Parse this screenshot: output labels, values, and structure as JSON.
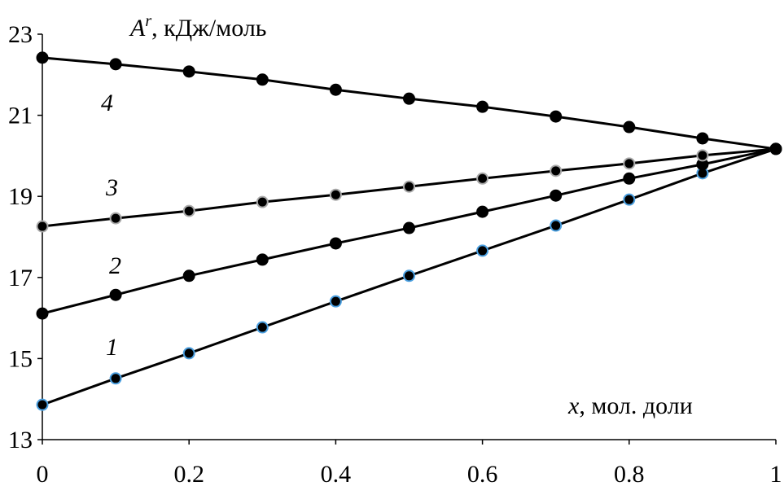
{
  "chart_data": {
    "type": "line",
    "title": "",
    "ylabel_main": "A",
    "ylabel_sup": "r",
    "ylabel_rest": ", кДж/моль",
    "xlabel_var": "x",
    "xlabel_rest": ", мол. доли",
    "xlim": [
      0,
      1
    ],
    "ylim": [
      13,
      23
    ],
    "xticks": [
      "0",
      "0.2",
      "0.4",
      "0.6",
      "0.8",
      "1"
    ],
    "yticks": [
      "13",
      "15",
      "17",
      "19",
      "21",
      "23"
    ],
    "grid": false,
    "x": [
      0,
      0.1,
      0.2,
      0.3,
      0.4,
      0.5,
      0.6,
      0.7,
      0.8,
      0.9,
      1.0
    ],
    "series": [
      {
        "label": "1",
        "marker_edge": "#4a9fe0",
        "values": [
          13.86,
          14.51,
          15.13,
          15.77,
          16.41,
          17.04,
          17.66,
          18.28,
          18.92,
          19.57,
          20.17
        ]
      },
      {
        "label": "2",
        "marker_edge": "#000000",
        "values": [
          16.11,
          16.57,
          17.04,
          17.44,
          17.84,
          18.22,
          18.62,
          19.02,
          19.44,
          19.79,
          20.17
        ]
      },
      {
        "label": "3",
        "marker_edge": "#aaaaaa",
        "values": [
          18.26,
          18.46,
          18.64,
          18.86,
          19.04,
          19.24,
          19.44,
          19.63,
          19.81,
          20.01,
          20.17
        ]
      },
      {
        "label": "4",
        "marker_edge": "#000000",
        "values": [
          22.42,
          22.26,
          22.08,
          21.88,
          21.63,
          21.41,
          21.21,
          20.97,
          20.71,
          20.43,
          20.17
        ]
      }
    ]
  }
}
